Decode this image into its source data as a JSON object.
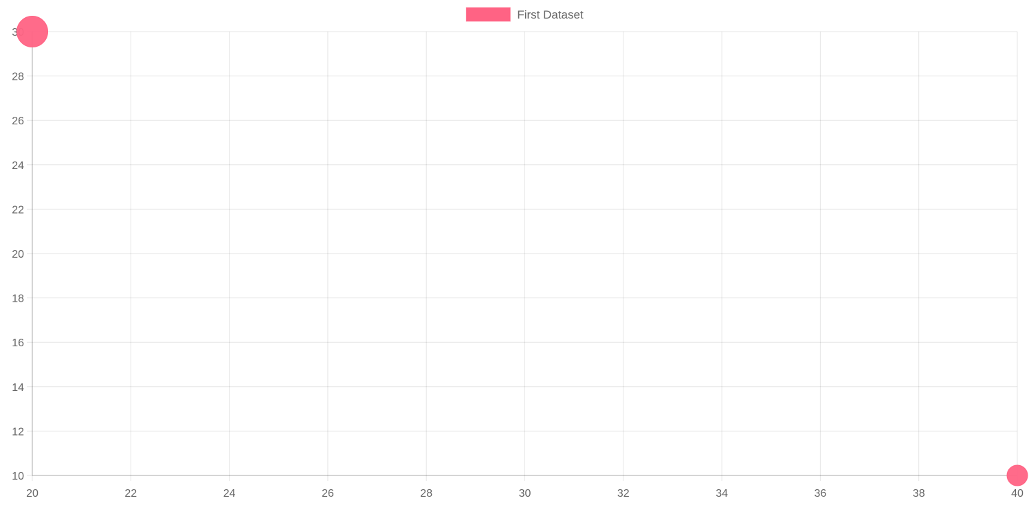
{
  "chart_data": {
    "type": "bubble",
    "title": "",
    "xlabel": "",
    "ylabel": "",
    "xlim": [
      20,
      40
    ],
    "ylim": [
      10,
      30
    ],
    "x_ticks": [
      "20",
      "22",
      "24",
      "26",
      "28",
      "30",
      "32",
      "34",
      "36",
      "38",
      "40"
    ],
    "y_ticks": [
      "10",
      "12",
      "14",
      "16",
      "18",
      "20",
      "22",
      "24",
      "26",
      "28",
      "30"
    ],
    "grid": true,
    "legend": {
      "position": "top-center",
      "entries": [
        "First Dataset"
      ]
    },
    "series": [
      {
        "name": "First Dataset",
        "color": "#ff6384",
        "points": [
          {
            "x": 20,
            "y": 30,
            "r": 15
          },
          {
            "x": 40,
            "y": 10,
            "r": 10
          }
        ]
      }
    ]
  }
}
